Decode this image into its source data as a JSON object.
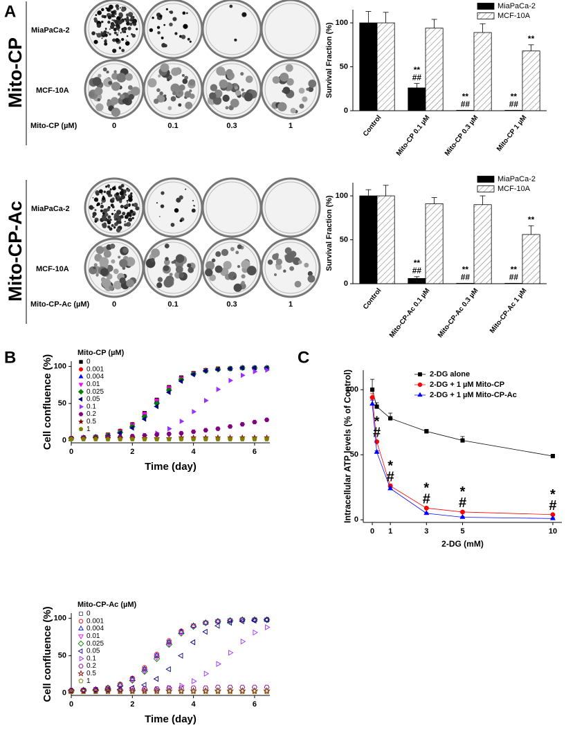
{
  "panel_labels": [
    "A",
    "B",
    "C"
  ],
  "plates": [
    {
      "row_label": "Mito-CP",
      "rows": [
        "MiaPaCa-2",
        "MCF-10A"
      ],
      "dose_label": "Mito-CP (µM)",
      "doses": [
        "0",
        "0.1",
        "0.3",
        "1"
      ]
    },
    {
      "row_label": "Mito-CP-Ac",
      "rows": [
        "MiaPaCa-2",
        "MCF-10A"
      ],
      "dose_label": "Mito-CP-Ac (µM)",
      "doses": [
        "0",
        "0.1",
        "0.3",
        "1"
      ]
    }
  ],
  "chart_data": [
    {
      "type": "bar",
      "ylabel": "Survival Fraction (%)",
      "categories": [
        "Control",
        "Mito-CP 0.1 µM",
        "Mito-CP 0.3 µM",
        "Mito-CP 1 µM"
      ],
      "series": [
        {
          "name": "MiaPaCa-2",
          "color": "#000000",
          "hatch": false,
          "values": [
            100,
            26,
            0.5,
            0.5
          ],
          "errors": [
            13,
            5,
            0,
            0
          ],
          "annotations": [
            null,
            [
              "**",
              "##"
            ],
            [
              "**",
              "##"
            ],
            [
              "**",
              "##"
            ]
          ]
        },
        {
          "name": "MCF-10A",
          "color": "#808080",
          "hatch": true,
          "values": [
            100,
            94,
            89,
            68
          ],
          "errors": [
            12,
            10,
            10,
            7
          ],
          "annotations": [
            null,
            null,
            null,
            [
              "**"
            ]
          ]
        }
      ],
      "ylim": [
        0,
        115
      ],
      "yticks": [
        0,
        50,
        100
      ],
      "legend": "upper right"
    },
    {
      "type": "bar",
      "ylabel": "Survival Fraction (%)",
      "categories": [
        "Control",
        "Mito-CP-Ac 0.1 µM",
        "Mito-CP-Ac 0.3 µM",
        "Mito-CP-Ac 1 µM"
      ],
      "series": [
        {
          "name": "MiaPaCa-2",
          "color": "#000000",
          "hatch": false,
          "values": [
            100,
            6,
            0.5,
            0.5
          ],
          "errors": [
            7,
            2,
            0,
            0
          ],
          "annotations": [
            null,
            [
              "**",
              "##"
            ],
            [
              "**",
              "##"
            ],
            [
              "**",
              "##"
            ]
          ]
        },
        {
          "name": "MCF-10A",
          "color": "#808080",
          "hatch": true,
          "values": [
            100,
            91,
            90,
            56
          ],
          "errors": [
            12,
            7,
            10,
            10
          ],
          "annotations": [
            null,
            null,
            null,
            [
              "**"
            ]
          ]
        }
      ],
      "ylim": [
        0,
        115
      ],
      "yticks": [
        0,
        50,
        100
      ],
      "legend": "upper right"
    },
    {
      "type": "scatter",
      "xlabel": "Time (day)",
      "ylabel": "Cell confluence (%)",
      "legend_title": "Mito-CP (µM)",
      "legend": "upper left",
      "marker_fill": "filled",
      "x": [
        0,
        0.4,
        0.8,
        1.2,
        1.6,
        2.0,
        2.4,
        2.8,
        3.2,
        3.6,
        4.0,
        4.4,
        4.8,
        5.2,
        5.6,
        6.0,
        6.4
      ],
      "series": [
        {
          "name": "0",
          "color": "#000000",
          "marker": "square",
          "values": [
            3,
            4,
            5,
            8,
            13,
            22,
            37,
            55,
            72,
            85,
            91,
            95,
            97,
            97,
            98,
            98,
            98
          ]
        },
        {
          "name": "0.001",
          "color": "#ff0000",
          "marker": "circle",
          "values": [
            3,
            4,
            5,
            8,
            13,
            22,
            36,
            54,
            71,
            84,
            91,
            95,
            97,
            97,
            98,
            98,
            98
          ]
        },
        {
          "name": "0.004",
          "color": "#0000ff",
          "marker": "triangle-up",
          "values": [
            3,
            4,
            5,
            7,
            12,
            21,
            35,
            53,
            70,
            83,
            90,
            94,
            96,
            97,
            98,
            98,
            98
          ]
        },
        {
          "name": "0.01",
          "color": "#ff00ff",
          "marker": "triangle-down",
          "values": [
            3,
            4,
            5,
            8,
            12,
            21,
            36,
            54,
            71,
            84,
            91,
            95,
            96,
            97,
            98,
            98,
            98
          ]
        },
        {
          "name": "0.025",
          "color": "#008000",
          "marker": "diamond",
          "values": [
            3,
            4,
            5,
            7,
            11,
            19,
            32,
            50,
            68,
            82,
            90,
            94,
            96,
            97,
            98,
            98,
            98
          ]
        },
        {
          "name": "0.05",
          "color": "#000080",
          "marker": "triangle-left",
          "values": [
            3,
            4,
            4,
            6,
            10,
            17,
            29,
            46,
            65,
            80,
            89,
            94,
            96,
            97,
            98,
            98,
            98
          ]
        },
        {
          "name": "0.1",
          "color": "#9b30ff",
          "marker": "triangle-right",
          "values": [
            3,
            3,
            3,
            4,
            4,
            5,
            7,
            10,
            16,
            26,
            39,
            54,
            69,
            81,
            88,
            93,
            95
          ]
        },
        {
          "name": "0.2",
          "color": "#800080",
          "marker": "hexagon",
          "values": [
            3,
            4,
            4,
            5,
            5,
            6,
            7,
            8,
            9,
            10,
            12,
            14,
            16,
            19,
            22,
            25,
            28
          ]
        },
        {
          "name": "0.5",
          "color": "#800000",
          "marker": "star",
          "values": [
            3,
            3,
            3,
            3,
            3,
            3,
            3,
            3,
            3,
            4,
            4,
            4,
            4,
            4,
            4,
            4,
            4
          ]
        },
        {
          "name": "1",
          "color": "#808000",
          "marker": "pentagon",
          "values": [
            2,
            2,
            2,
            2,
            2,
            2,
            2,
            2,
            2,
            2,
            2,
            2,
            2,
            2,
            2,
            2,
            2
          ]
        }
      ],
      "xlim": [
        0,
        6.5
      ],
      "xticks": [
        0,
        2,
        4,
        6
      ],
      "ylim": [
        -3,
        107
      ],
      "yticks": [
        0,
        50,
        100
      ]
    },
    {
      "type": "scatter",
      "xlabel": "Time (day)",
      "ylabel": "Cell confluence (%)",
      "legend_title": "Mito-CP-Ac (µM)",
      "legend": "upper left",
      "marker_fill": "hollow",
      "x": [
        0,
        0.4,
        0.8,
        1.2,
        1.6,
        2.0,
        2.4,
        2.8,
        3.2,
        3.6,
        4.0,
        4.4,
        4.8,
        5.2,
        5.6,
        6.0,
        6.4
      ],
      "series": [
        {
          "name": "0",
          "color": "#4a4a7a",
          "marker": "square",
          "values": [
            3,
            4,
            5,
            7,
            11,
            19,
            32,
            50,
            68,
            82,
            90,
            94,
            96,
            97,
            98,
            98,
            98
          ]
        },
        {
          "name": "0.001",
          "color": "#ff0000",
          "marker": "circle",
          "values": [
            3,
            4,
            5,
            7,
            12,
            20,
            34,
            52,
            70,
            83,
            90,
            94,
            96,
            97,
            98,
            98,
            98
          ]
        },
        {
          "name": "0.004",
          "color": "#0000ff",
          "marker": "triangle-up",
          "values": [
            3,
            4,
            5,
            7,
            11,
            19,
            32,
            50,
            68,
            82,
            90,
            94,
            96,
            97,
            98,
            98,
            98
          ]
        },
        {
          "name": "0.01",
          "color": "#ff00ff",
          "marker": "triangle-down",
          "values": [
            3,
            4,
            4,
            6,
            10,
            18,
            30,
            48,
            66,
            81,
            89,
            94,
            96,
            97,
            98,
            98,
            98
          ]
        },
        {
          "name": "0.025",
          "color": "#008000",
          "marker": "diamond",
          "values": [
            3,
            4,
            4,
            6,
            10,
            17,
            29,
            46,
            65,
            80,
            89,
            94,
            96,
            97,
            98,
            98,
            98
          ]
        },
        {
          "name": "0.05",
          "color": "#000080",
          "marker": "triangle-left",
          "values": [
            3,
            3,
            4,
            4,
            5,
            7,
            11,
            19,
            32,
            50,
            68,
            82,
            90,
            94,
            96,
            97,
            98
          ]
        },
        {
          "name": "0.1",
          "color": "#9b30ff",
          "marker": "triangle-right",
          "values": [
            3,
            3,
            3,
            3,
            3,
            3,
            4,
            5,
            7,
            10,
            16,
            26,
            39,
            54,
            69,
            81,
            88
          ]
        },
        {
          "name": "0.2",
          "color": "#800080",
          "marker": "hexagon",
          "values": [
            4,
            4,
            5,
            5,
            5,
            6,
            6,
            6,
            7,
            7,
            7,
            7,
            8,
            8,
            8,
            8,
            8
          ]
        },
        {
          "name": "0.5",
          "color": "#800000",
          "marker": "star",
          "values": [
            3,
            3,
            3,
            3,
            3,
            3,
            3,
            3,
            3,
            3,
            3,
            3,
            3,
            3,
            3,
            3,
            3
          ]
        },
        {
          "name": "1",
          "color": "#808000",
          "marker": "pentagon",
          "values": [
            2,
            2,
            2,
            2,
            2,
            2,
            2,
            2,
            2,
            2,
            2,
            2,
            2,
            2,
            2,
            2,
            2
          ]
        }
      ],
      "xlim": [
        0,
        6.5
      ],
      "xticks": [
        0,
        2,
        4,
        6
      ],
      "ylim": [
        -3,
        107
      ],
      "yticks": [
        0,
        50,
        100
      ]
    },
    {
      "type": "line",
      "xlabel": "2-DG (mM)",
      "ylabel": "Intracellular ATP levels (% of Control)",
      "legend": "upper right",
      "x": [
        0,
        0.25,
        1,
        3,
        5,
        10
      ],
      "series": [
        {
          "name": "2-DG alone",
          "color": "#000000",
          "marker": "square",
          "values": [
            100,
            87,
            78,
            68,
            61,
            49
          ],
          "errors": [
            8,
            3,
            4,
            1.5,
            3,
            1
          ]
        },
        {
          "name": "2-DG + 1 µM Mito-CP",
          "color": "#ff0000",
          "marker": "circle",
          "values": [
            94,
            60,
            26,
            9,
            6,
            4
          ],
          "errors": [
            3,
            1,
            1.5,
            1,
            0.5,
            0.5
          ]
        },
        {
          "name": "2-DG + 1 µM Mito-CP-Ac",
          "color": "#0000ff",
          "marker": "triangle-up",
          "values": [
            89,
            52,
            24,
            5,
            2,
            1
          ],
          "errors": [
            3,
            1,
            1,
            0.5,
            0.5,
            0.5
          ]
        }
      ],
      "annotations": [
        null,
        [
          "*",
          "#"
        ],
        [
          "*",
          "#"
        ],
        [
          "*",
          "#"
        ],
        [
          "*",
          "#"
        ],
        [
          "*",
          "#"
        ]
      ],
      "xlim": [
        -0.5,
        10.5
      ],
      "xticks": [
        0,
        1,
        3,
        5,
        10
      ],
      "ylim": [
        -2,
        115
      ],
      "yticks": [
        0,
        50,
        100
      ]
    }
  ]
}
